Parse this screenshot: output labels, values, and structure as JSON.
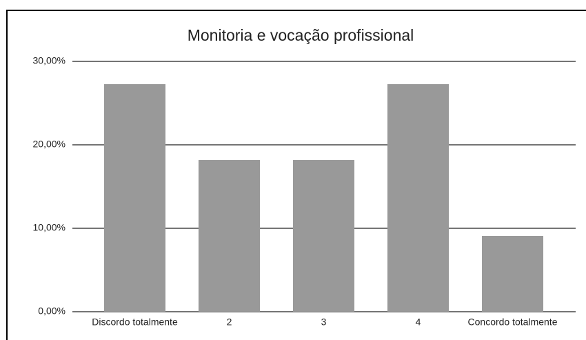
{
  "chart_data": {
    "type": "bar",
    "title": "Monitoria e vocação profissional",
    "categories": [
      "Discordo totalmente",
      "2",
      "3",
      "4",
      "Concordo totalmente"
    ],
    "values": [
      27.27,
      18.18,
      18.18,
      27.27,
      9.09
    ],
    "color": "#999999",
    "ylim": [
      0,
      30
    ],
    "yticks": [
      {
        "value": 0,
        "label": "0,00%"
      },
      {
        "value": 10,
        "label": "10,00%"
      },
      {
        "value": 20,
        "label": "20,00%"
      },
      {
        "value": 30,
        "label": "30,00%"
      }
    ],
    "grid": true
  }
}
